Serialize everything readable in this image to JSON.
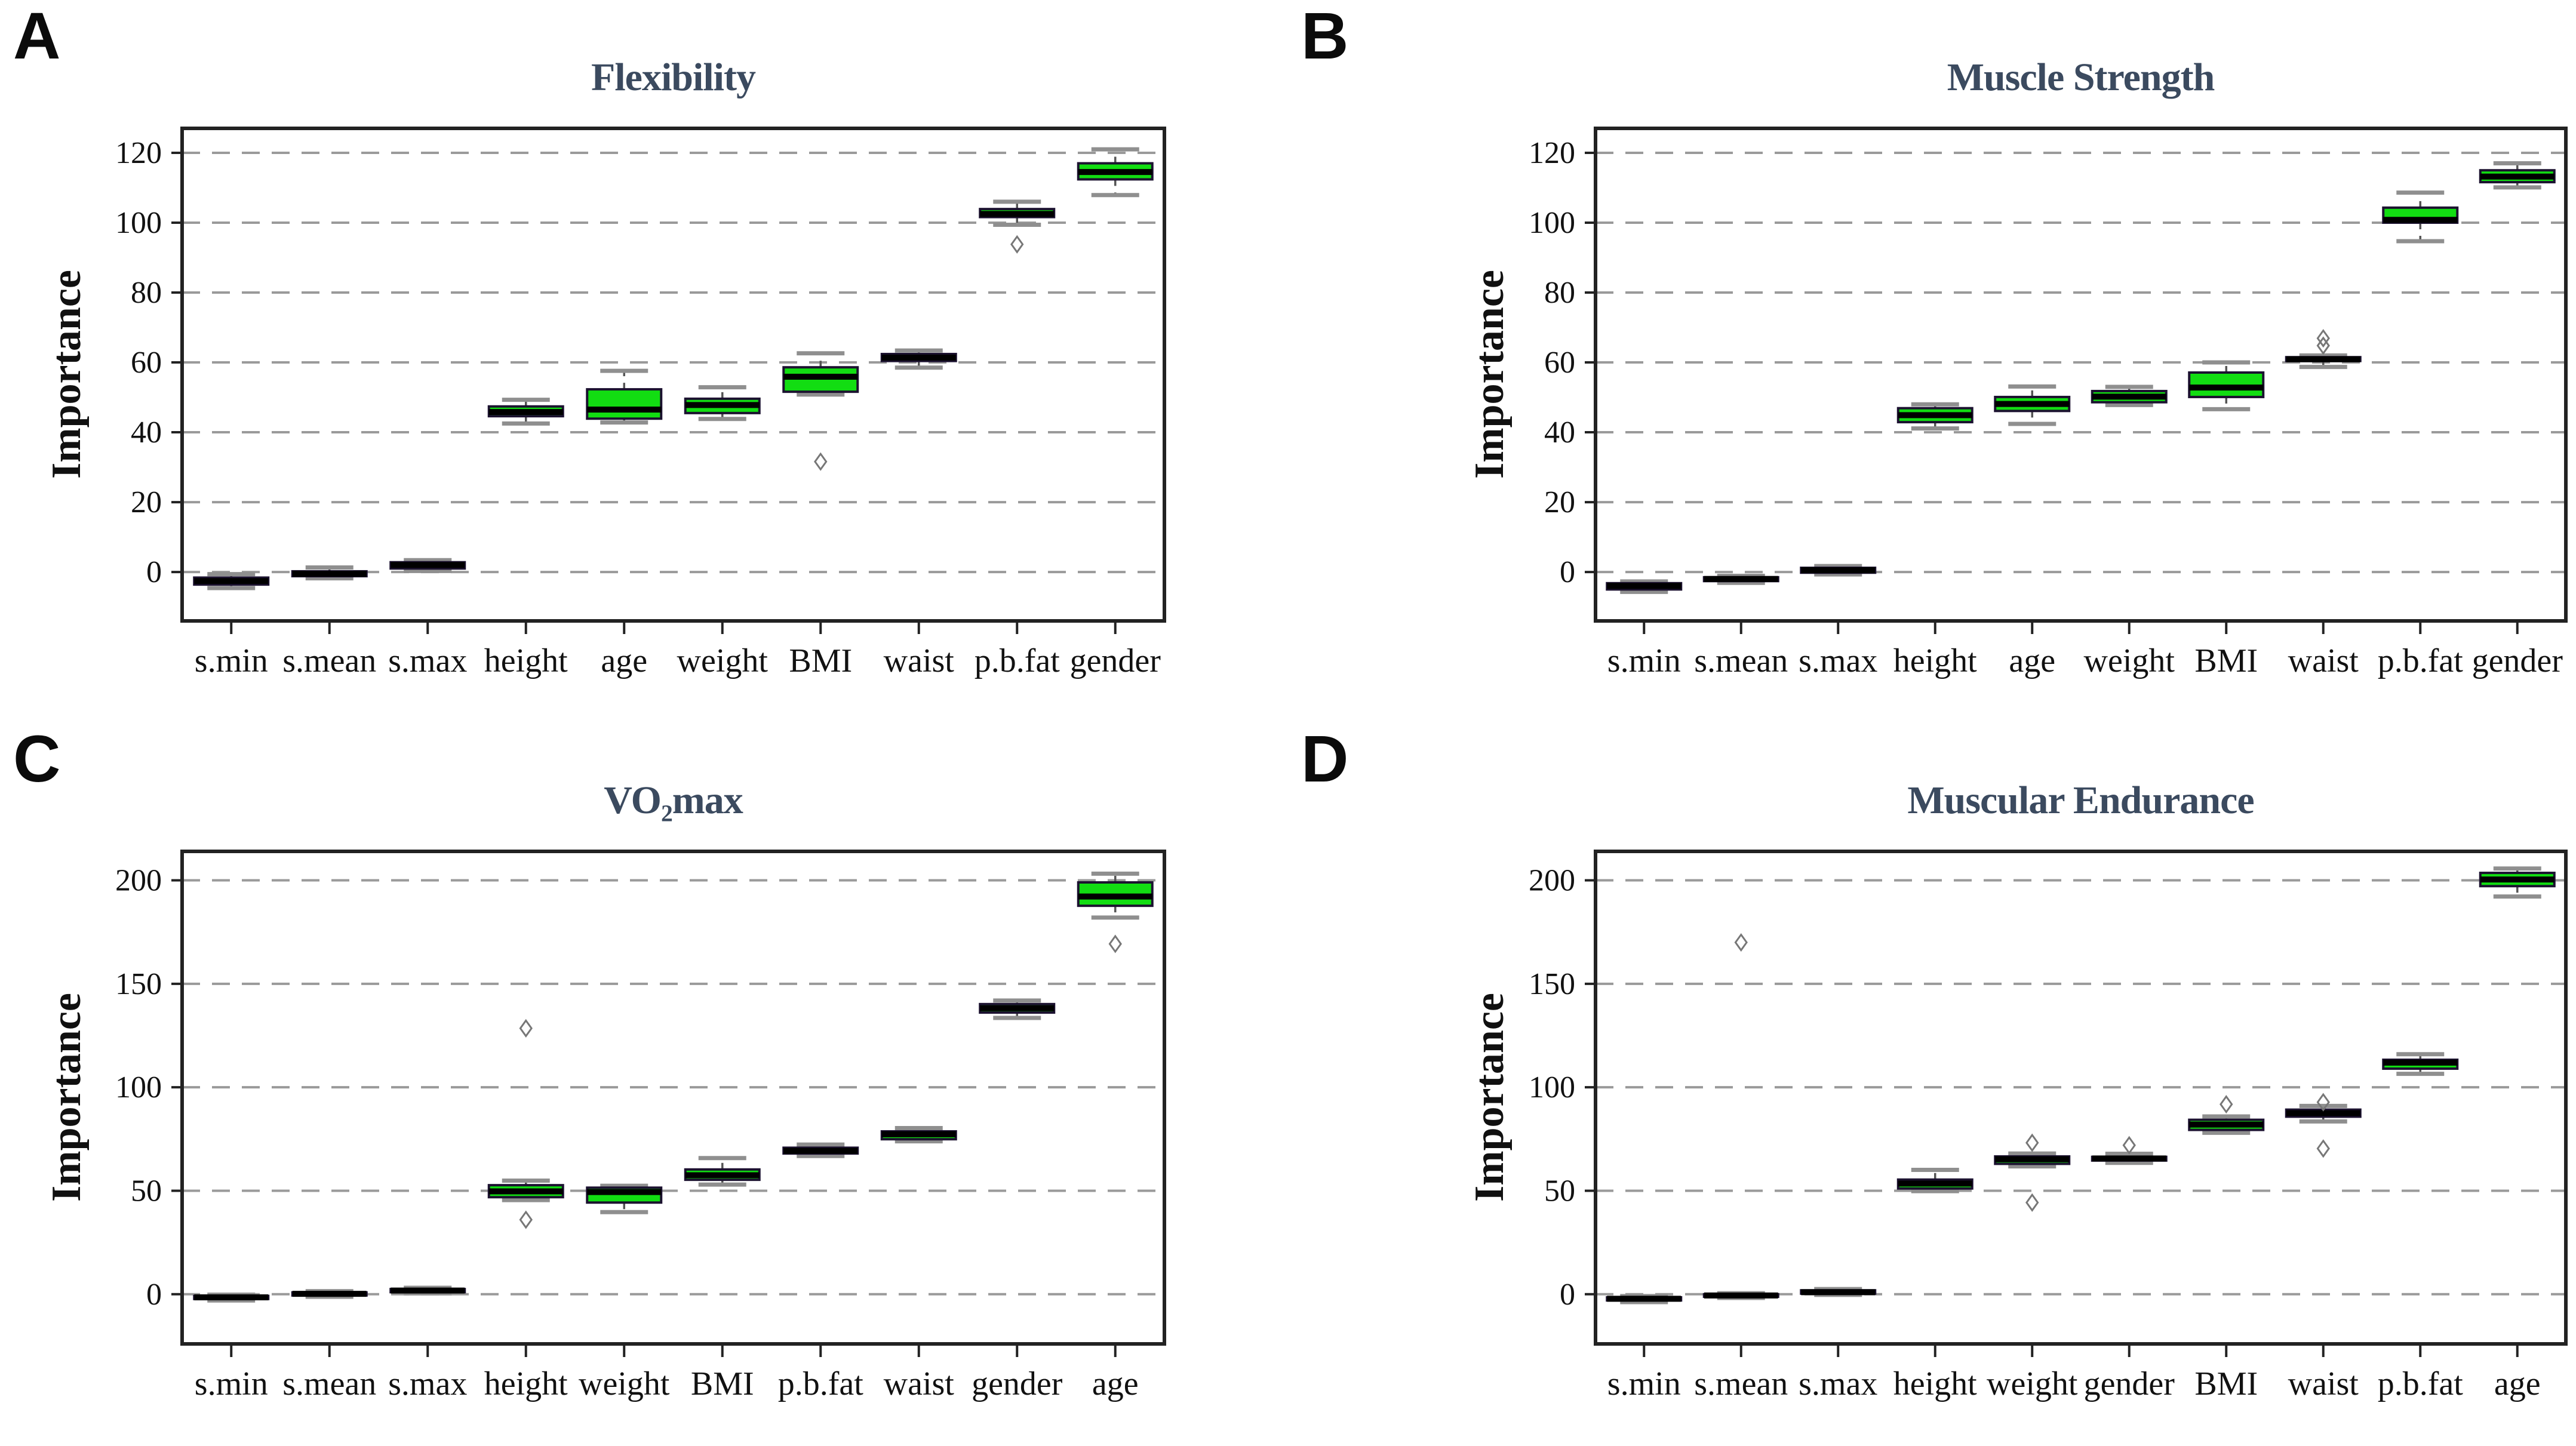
{
  "page": {
    "background": "#ffffff"
  },
  "colors": {
    "green": "#12dd12",
    "navy": "#0a12a2",
    "dark": "#15152a",
    "box_border": "#1c1230",
    "median": "#000000",
    "grid": "#9a9a9a",
    "whisker": "#555555",
    "cap": "#8f8f8f",
    "outlier": "#777777",
    "frame": "#222222",
    "title": "#3b4a5f"
  },
  "chart_data": [
    {
      "type": "boxplot",
      "panel_label": "A",
      "title": "Flexibility",
      "ylabel": "Importance",
      "side": "left",
      "ylim": [
        -14,
        127
      ],
      "yticks": [
        0,
        20,
        40,
        60,
        80,
        100,
        120
      ],
      "grid": "dashed",
      "categories": [
        "s.min",
        "s.mean",
        "s.max",
        "height",
        "age",
        "weight",
        "BMI",
        "waist",
        "p.b.fat",
        "gender"
      ],
      "boxes": [
        {
          "category": "s.min",
          "color": "navy",
          "whislo": -4.6,
          "q1": -3.6,
          "med": -2.6,
          "q3": -1.6,
          "whishi": -0.6,
          "outliers": []
        },
        {
          "category": "s.mean",
          "color": "dark",
          "whislo": -1.8,
          "q1": -1.2,
          "med": -0.5,
          "q3": 0.2,
          "whishi": 1.3,
          "outliers": []
        },
        {
          "category": "s.max",
          "color": "navy",
          "whislo": 0.3,
          "q1": 1.0,
          "med": 2.0,
          "q3": 2.8,
          "whishi": 3.4,
          "outliers": []
        },
        {
          "category": "height",
          "color": "green",
          "whislo": 42.5,
          "q1": 44.6,
          "med": 45.8,
          "q3": 47.4,
          "whishi": 49.3,
          "outliers": []
        },
        {
          "category": "age",
          "color": "green",
          "whislo": 42.8,
          "q1": 43.9,
          "med": 46.5,
          "q3": 52.3,
          "whishi": 57.6,
          "outliers": []
        },
        {
          "category": "weight",
          "color": "green",
          "whislo": 43.8,
          "q1": 45.5,
          "med": 47.8,
          "q3": 49.6,
          "whishi": 52.9,
          "outliers": []
        },
        {
          "category": "BMI",
          "color": "green",
          "whislo": 50.8,
          "q1": 51.6,
          "med": 55.9,
          "q3": 58.6,
          "whishi": 62.6,
          "outliers": [
            31.6
          ]
        },
        {
          "category": "waist",
          "color": "green",
          "whislo": 58.5,
          "q1": 60.4,
          "med": 61.4,
          "q3": 62.4,
          "whishi": 63.4,
          "outliers": []
        },
        {
          "category": "p.b.fat",
          "color": "green",
          "whislo": 99.4,
          "q1": 101.6,
          "med": 102.5,
          "q3": 103.9,
          "whishi": 106.0,
          "outliers": [
            93.8
          ]
        },
        {
          "category": "gender",
          "color": "green",
          "whislo": 107.9,
          "q1": 112.4,
          "med": 114.5,
          "q3": 117.0,
          "whishi": 121.0,
          "outliers": []
        }
      ]
    },
    {
      "type": "boxplot",
      "panel_label": "B",
      "title": "Muscle Strength",
      "ylabel": "Importance",
      "side": "right",
      "ylim": [
        -14,
        127
      ],
      "yticks": [
        0,
        20,
        40,
        60,
        80,
        100,
        120
      ],
      "grid": "dashed",
      "categories": [
        "s.min",
        "s.mean",
        "s.max",
        "height",
        "age",
        "weight",
        "BMI",
        "waist",
        "p.b.fat",
        "gender"
      ],
      "boxes": [
        {
          "category": "s.min",
          "color": "navy",
          "whislo": -5.7,
          "q1": -5.0,
          "med": -4.0,
          "q3": -3.2,
          "whishi": -2.7,
          "outliers": []
        },
        {
          "category": "s.mean",
          "color": "dark",
          "whislo": -3.1,
          "q1": -2.6,
          "med": -2.0,
          "q3": -1.5,
          "whishi": -1.1,
          "outliers": []
        },
        {
          "category": "s.max",
          "color": "navy",
          "whislo": -0.7,
          "q1": -0.2,
          "med": 0.5,
          "q3": 1.2,
          "whishi": 1.7,
          "outliers": []
        },
        {
          "category": "height",
          "color": "green",
          "whislo": 41.1,
          "q1": 42.9,
          "med": 44.9,
          "q3": 46.9,
          "whishi": 48.0,
          "outliers": []
        },
        {
          "category": "age",
          "color": "green",
          "whislo": 42.4,
          "q1": 46.1,
          "med": 48.1,
          "q3": 50.1,
          "whishi": 53.1,
          "outliers": []
        },
        {
          "category": "weight",
          "color": "green",
          "whislo": 47.8,
          "q1": 48.6,
          "med": 50.2,
          "q3": 51.8,
          "whishi": 53.0,
          "outliers": []
        },
        {
          "category": "BMI",
          "color": "green",
          "whislo": 46.6,
          "q1": 50.1,
          "med": 52.8,
          "q3": 57.1,
          "whishi": 60.0,
          "outliers": []
        },
        {
          "category": "waist",
          "color": "green",
          "whislo": 58.7,
          "q1": 60.4,
          "med": 60.9,
          "q3": 61.5,
          "whishi": 62.0,
          "outliers": [
            64.8,
            66.9
          ]
        },
        {
          "category": "p.b.fat",
          "color": "green",
          "whislo": 94.7,
          "q1": 100.0,
          "med": 100.8,
          "q3": 104.3,
          "whishi": 108.6,
          "outliers": []
        },
        {
          "category": "gender",
          "color": "green",
          "whislo": 110.1,
          "q1": 111.6,
          "med": 113.2,
          "q3": 115.0,
          "whishi": 117.0,
          "outliers": []
        }
      ]
    },
    {
      "type": "boxplot",
      "panel_label": "C",
      "title": "VO₂max",
      "ylabel": "Importance",
      "side": "left",
      "ylim": [
        -24,
        214
      ],
      "yticks": [
        0,
        50,
        100,
        150,
        200
      ],
      "grid": "dashed",
      "categories": [
        "s.min",
        "s.mean",
        "s.max",
        "height",
        "weight",
        "BMI",
        "p.b.fat",
        "waist",
        "gender",
        "age"
      ],
      "boxes": [
        {
          "category": "s.min",
          "color": "navy",
          "whislo": -3.0,
          "q1": -2.3,
          "med": -1.5,
          "q3": -0.8,
          "whishi": -0.2,
          "outliers": []
        },
        {
          "category": "s.mean",
          "color": "navy",
          "whislo": -1.2,
          "q1": -0.6,
          "med": 0.2,
          "q3": 0.9,
          "whishi": 1.5,
          "outliers": []
        },
        {
          "category": "s.max",
          "color": "navy",
          "whislo": 0.4,
          "q1": 1.0,
          "med": 1.8,
          "q3": 2.5,
          "whishi": 3.1,
          "outliers": []
        },
        {
          "category": "height",
          "color": "green",
          "whislo": 45.5,
          "q1": 46.9,
          "med": 49.7,
          "q3": 52.7,
          "whishi": 54.9,
          "outliers": [
            36.0,
            128.5
          ]
        },
        {
          "category": "weight",
          "color": "green",
          "whislo": 39.7,
          "q1": 44.3,
          "med": 49.4,
          "q3": 51.5,
          "whishi": 52.4,
          "outliers": []
        },
        {
          "category": "BMI",
          "color": "green",
          "whislo": 53.0,
          "q1": 55.3,
          "med": 57.5,
          "q3": 60.3,
          "whishi": 65.8,
          "outliers": []
        },
        {
          "category": "p.b.fat",
          "color": "green",
          "whislo": 66.8,
          "q1": 68.0,
          "med": 69.3,
          "q3": 70.8,
          "whishi": 72.3,
          "outliers": []
        },
        {
          "category": "waist",
          "color": "green",
          "whislo": 73.9,
          "q1": 74.9,
          "med": 77.3,
          "q3": 78.7,
          "whishi": 80.3,
          "outliers": []
        },
        {
          "category": "gender",
          "color": "green",
          "whislo": 133.5,
          "q1": 136.1,
          "med": 138.2,
          "q3": 140.2,
          "whishi": 141.9,
          "outliers": []
        },
        {
          "category": "age",
          "color": "green",
          "whislo": 182.0,
          "q1": 187.7,
          "med": 192.2,
          "q3": 199.0,
          "whishi": 203.2,
          "outliers": [
            169.3
          ]
        }
      ]
    },
    {
      "type": "boxplot",
      "panel_label": "D",
      "title": "Muscular Endurance",
      "ylabel": "Importance",
      "side": "right",
      "ylim": [
        -24,
        214
      ],
      "yticks": [
        0,
        50,
        100,
        150,
        200
      ],
      "grid": "dashed",
      "categories": [
        "s.min",
        "s.mean",
        "s.max",
        "height",
        "weight",
        "gender",
        "BMI",
        "waist",
        "p.b.fat",
        "age"
      ],
      "boxes": [
        {
          "category": "s.min",
          "color": "dark",
          "whislo": -3.8,
          "q1": -3.0,
          "med": -2.2,
          "q3": -1.5,
          "whishi": -0.9,
          "outliers": []
        },
        {
          "category": "s.mean",
          "color": "dark",
          "whislo": -1.8,
          "q1": -1.2,
          "med": -0.6,
          "q3": 0.0,
          "whishi": 0.5,
          "outliers": [
            170.0
          ]
        },
        {
          "category": "s.max",
          "color": "navy",
          "whislo": -0.3,
          "q1": 0.3,
          "med": 1.0,
          "q3": 1.9,
          "whishi": 2.5,
          "outliers": []
        },
        {
          "category": "height",
          "color": "green",
          "whislo": 49.8,
          "q1": 51.1,
          "med": 53.5,
          "q3": 55.4,
          "whishi": 60.1,
          "outliers": []
        },
        {
          "category": "weight",
          "color": "green",
          "whislo": 61.8,
          "q1": 63.0,
          "med": 65.2,
          "q3": 66.6,
          "whishi": 68.0,
          "outliers": [
            73.2,
            44.3
          ]
        },
        {
          "category": "gender",
          "color": "green",
          "whislo": 63.5,
          "q1": 64.6,
          "med": 65.6,
          "q3": 66.4,
          "whishi": 67.9,
          "outliers": [
            72.0
          ]
        },
        {
          "category": "BMI",
          "color": "green",
          "whislo": 78.0,
          "q1": 79.4,
          "med": 82.0,
          "q3": 84.3,
          "whishi": 85.9,
          "outliers": [
            91.8
          ]
        },
        {
          "category": "waist",
          "color": "green",
          "whislo": 83.5,
          "q1": 85.8,
          "med": 87.5,
          "q3": 89.2,
          "whishi": 91.0,
          "outliers": [
            92.8,
            70.4
          ]
        },
        {
          "category": "p.b.fat",
          "color": "green",
          "whislo": 106.5,
          "q1": 109.0,
          "med": 111.9,
          "q3": 113.3,
          "whishi": 116.0,
          "outliers": []
        },
        {
          "category": "age",
          "color": "green",
          "whislo": 192.2,
          "q1": 197.2,
          "med": 200.4,
          "q3": 203.6,
          "whishi": 205.7,
          "outliers": []
        }
      ]
    }
  ]
}
